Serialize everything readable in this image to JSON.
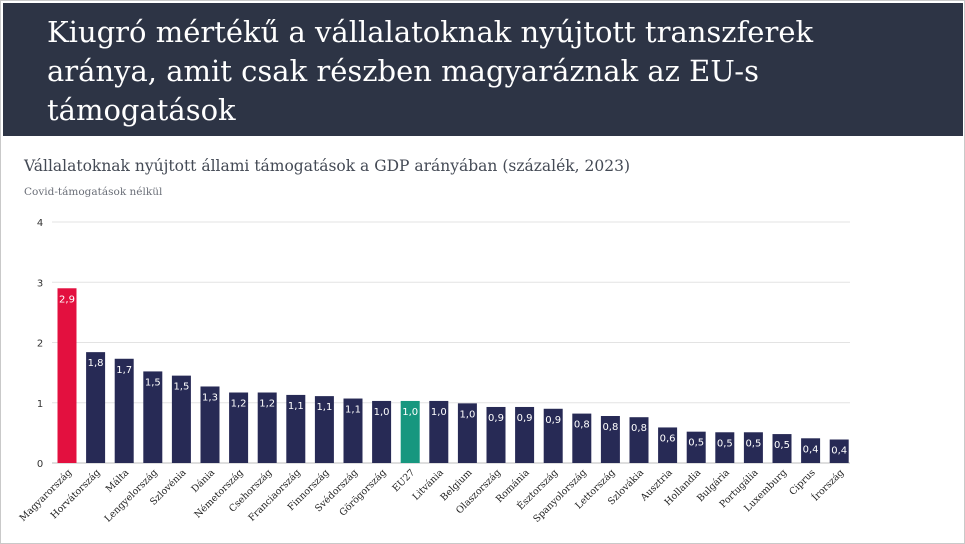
{
  "header": {
    "title": "Kiugró mértékű a vállalatoknak nyújtott transzferek aránya, amit csak részben magyaráznak az EU-s támogatások"
  },
  "colors": {
    "header_bg": "#2d3445",
    "bar_default": "#272a55",
    "bar_highlight": "#e3103f",
    "bar_eu27": "#17977f",
    "grid": "#e3e3e3"
  },
  "chart_data": {
    "type": "bar",
    "title": "Vállalatoknak nyújtott állami támogatások a GDP arányában (százalék, 2023)",
    "subtitle": "Covid-támogatások nélkül",
    "xlabel": "",
    "ylabel": "",
    "ylim": [
      0,
      4
    ],
    "yticks": [
      "0",
      "1",
      "2",
      "3",
      "4"
    ],
    "grid": true,
    "categories": [
      "Magyarország",
      "Horvátország",
      "Málta",
      "Lengyelország",
      "Szlovénia",
      "Dánia",
      "Németország",
      "Csehország",
      "Franciaország",
      "Finnország",
      "Svédország",
      "Görögország",
      "EU27",
      "Litvánia",
      "Belgium",
      "Olaszország",
      "Románia",
      "Észtország",
      "Spanyolország",
      "Lettország",
      "Szlovákia",
      "Ausztria",
      "Hollandia",
      "Bulgária",
      "Portugália",
      "Luxemburg",
      "Ciprus",
      "Írország"
    ],
    "values": [
      2.9,
      1.84,
      1.73,
      1.52,
      1.45,
      1.27,
      1.17,
      1.17,
      1.13,
      1.11,
      1.07,
      1.03,
      1.03,
      1.03,
      0.99,
      0.93,
      0.93,
      0.9,
      0.82,
      0.78,
      0.76,
      0.59,
      0.52,
      0.51,
      0.51,
      0.48,
      0.41,
      0.39
    ],
    "value_labels": [
      "2,9",
      "1,8",
      "1,7",
      "1,5",
      "1,5",
      "1,3",
      "1,2",
      "1,2",
      "1,1",
      "1,1",
      "1,1",
      "1,0",
      "1,0",
      "1,0",
      "1,0",
      "0,9",
      "0,9",
      "0,9",
      "0,8",
      "0,8",
      "0,8",
      "0,6",
      "0,5",
      "0,5",
      "0,5",
      "0,5",
      "0,4",
      "0,4"
    ],
    "highlight": {
      "Magyarország": "#e3103f",
      "EU27": "#17977f"
    }
  }
}
